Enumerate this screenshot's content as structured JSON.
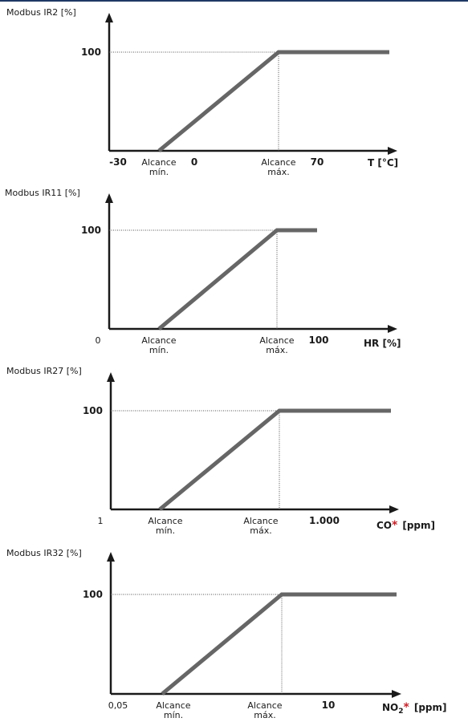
{
  "colors": {
    "line": "#666666",
    "axis": "#1a1a1a",
    "asterisk": "#c0262d",
    "topbar": "#1f3864"
  },
  "chart_data": [
    {
      "type": "line",
      "ylabel": "Modbus IR2 [%]",
      "y_tick": "100",
      "x_tick_labels": [
        {
          "text": "-30",
          "bold": true
        },
        {
          "text": "Alcance",
          "text2": "mín.",
          "bold": false
        },
        {
          "text": "0",
          "bold": true
        },
        {
          "text": "Alcance",
          "text2": "máx.",
          "bold": false
        },
        {
          "text": "70",
          "bold": true
        }
      ],
      "xlabel": {
        "main": "T [°C]",
        "sub": "",
        "asterisk": "",
        "unit": ""
      },
      "series": [
        {
          "x": [
            "Alcance mín.",
            "Alcance máx.",
            "70+"
          ],
          "y": [
            0,
            100,
            100
          ]
        }
      ]
    },
    {
      "type": "line",
      "ylabel": "Modbus IR11 [%]",
      "y_tick": "100",
      "x_tick_labels": [
        {
          "text": "0",
          "bold": false
        },
        {
          "text": "Alcance",
          "text2": "mín.",
          "bold": false
        },
        {
          "text": "Alcance",
          "text2": "máx.",
          "bold": false
        },
        {
          "text": "100",
          "bold": true
        }
      ],
      "xlabel": {
        "main": "HR [%]",
        "sub": "",
        "asterisk": "",
        "unit": ""
      },
      "series": [
        {
          "x": [
            "Alcance mín.",
            "Alcance máx.",
            "100"
          ],
          "y": [
            0,
            100,
            100
          ]
        }
      ]
    },
    {
      "type": "line",
      "ylabel": "Modbus IR27 [%]",
      "y_tick": "100",
      "x_tick_labels": [
        {
          "text": "1",
          "bold": false
        },
        {
          "text": "Alcance",
          "text2": "mín.",
          "bold": false
        },
        {
          "text": "Alcance",
          "text2": "máx.",
          "bold": false
        },
        {
          "text": "1.000",
          "bold": true
        }
      ],
      "xlabel": {
        "main": "CO",
        "sub": "",
        "asterisk": "*",
        "unit": "[ppm]"
      },
      "series": [
        {
          "x": [
            "Alcance mín.",
            "Alcance máx.",
            "1.000+"
          ],
          "y": [
            0,
            100,
            100
          ]
        }
      ]
    },
    {
      "type": "line",
      "ylabel": "Modbus IR32 [%]",
      "y_tick": "100",
      "x_tick_labels": [
        {
          "text": "0,05",
          "bold": false
        },
        {
          "text": "Alcance",
          "text2": "mín.",
          "bold": false
        },
        {
          "text": "Alcance",
          "text2": "máx.",
          "bold": false
        },
        {
          "text": "10",
          "bold": true
        }
      ],
      "xlabel": {
        "main": "NO",
        "sub": "2",
        "asterisk": "*",
        "unit": "[ppm]"
      },
      "series": [
        {
          "x": [
            "Alcance mín.",
            "Alcance máx.",
            "10+"
          ],
          "y": [
            0,
            100,
            100
          ]
        }
      ]
    }
  ]
}
